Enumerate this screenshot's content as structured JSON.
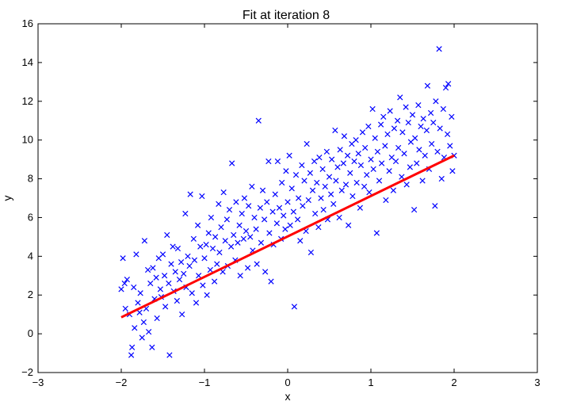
{
  "chart_data": {
    "type": "scatter",
    "title": "Fit at iteration 8",
    "xlabel": "x",
    "ylabel": "y",
    "xlim": [
      -3,
      3
    ],
    "ylim": [
      -2,
      16
    ],
    "xticks": [
      -3,
      -2,
      -1,
      0,
      1,
      2,
      3
    ],
    "yticks": [
      -2,
      0,
      2,
      4,
      6,
      8,
      10,
      12,
      14,
      16
    ],
    "grid": false,
    "colors": {
      "scatter": "#0000ff",
      "fit_line": "#ff0000"
    },
    "series": [
      {
        "type": "scatter",
        "marker": "x",
        "points": [
          [
            -2.0,
            2.3
          ],
          [
            -1.98,
            3.9
          ],
          [
            -1.96,
            2.6
          ],
          [
            -1.95,
            1.3
          ],
          [
            -1.93,
            2.8
          ],
          [
            -1.9,
            1.0
          ],
          [
            -1.88,
            -1.1
          ],
          [
            -1.87,
            -0.7
          ],
          [
            -1.85,
            2.4
          ],
          [
            -1.84,
            0.3
          ],
          [
            -1.82,
            4.1
          ],
          [
            -1.8,
            1.6
          ],
          [
            -1.78,
            1.1
          ],
          [
            -1.77,
            2.1
          ],
          [
            -1.75,
            -0.2
          ],
          [
            -1.73,
            0.6
          ],
          [
            -1.72,
            4.8
          ],
          [
            -1.7,
            1.3
          ],
          [
            -1.68,
            3.3
          ],
          [
            -1.67,
            0.1
          ],
          [
            -1.65,
            2.6
          ],
          [
            -1.63,
            -0.7
          ],
          [
            -1.62,
            3.4
          ],
          [
            -1.6,
            1.8
          ],
          [
            -1.58,
            2.9
          ],
          [
            -1.57,
            0.8
          ],
          [
            -1.55,
            3.9
          ],
          [
            -1.53,
            2.3
          ],
          [
            -1.52,
            1.9
          ],
          [
            -1.5,
            4.1
          ],
          [
            -1.48,
            3.0
          ],
          [
            -1.47,
            1.4
          ],
          [
            -1.45,
            5.1
          ],
          [
            -1.43,
            2.6
          ],
          [
            -1.42,
            -1.1
          ],
          [
            -1.4,
            3.6
          ],
          [
            -1.38,
            4.5
          ],
          [
            -1.37,
            2.2
          ],
          [
            -1.35,
            3.2
          ],
          [
            -1.33,
            1.7
          ],
          [
            -1.32,
            4.4
          ],
          [
            -1.3,
            2.8
          ],
          [
            -1.28,
            3.7
          ],
          [
            -1.27,
            1.0
          ],
          [
            -1.25,
            3.1
          ],
          [
            -1.23,
            6.2
          ],
          [
            -1.22,
            2.4
          ],
          [
            -1.2,
            4.0
          ],
          [
            -1.18,
            3.5
          ],
          [
            -1.17,
            7.2
          ],
          [
            -1.15,
            2.1
          ],
          [
            -1.13,
            4.9
          ],
          [
            -1.12,
            3.8
          ],
          [
            -1.1,
            1.6
          ],
          [
            -1.08,
            5.6
          ],
          [
            -1.07,
            3.0
          ],
          [
            -1.05,
            4.5
          ],
          [
            -1.03,
            7.1
          ],
          [
            -1.02,
            2.5
          ],
          [
            -1.0,
            3.9
          ],
          [
            -0.98,
            4.6
          ],
          [
            -0.97,
            2.0
          ],
          [
            -0.95,
            5.2
          ],
          [
            -0.93,
            3.3
          ],
          [
            -0.92,
            6.0
          ],
          [
            -0.9,
            4.4
          ],
          [
            -0.88,
            2.7
          ],
          [
            -0.87,
            5.0
          ],
          [
            -0.85,
            3.6
          ],
          [
            -0.83,
            6.7
          ],
          [
            -0.82,
            4.2
          ],
          [
            -0.8,
            5.5
          ],
          [
            -0.78,
            3.2
          ],
          [
            -0.77,
            7.3
          ],
          [
            -0.75,
            4.8
          ],
          [
            -0.73,
            5.9
          ],
          [
            -0.72,
            3.5
          ],
          [
            -0.7,
            6.4
          ],
          [
            -0.68,
            4.5
          ],
          [
            -0.67,
            8.8
          ],
          [
            -0.65,
            5.1
          ],
          [
            -0.63,
            3.8
          ],
          [
            -0.62,
            6.8
          ],
          [
            -0.6,
            4.7
          ],
          [
            -0.58,
            5.6
          ],
          [
            -0.57,
            3.0
          ],
          [
            -0.55,
            6.2
          ],
          [
            -0.53,
            4.9
          ],
          [
            -0.52,
            7.0
          ],
          [
            -0.5,
            5.3
          ],
          [
            -0.48,
            3.4
          ],
          [
            -0.47,
            6.6
          ],
          [
            -0.45,
            5.0
          ],
          [
            -0.43,
            7.6
          ],
          [
            -0.42,
            4.3
          ],
          [
            -0.4,
            6.0
          ],
          [
            -0.38,
            5.4
          ],
          [
            -0.37,
            3.6
          ],
          [
            -0.35,
            11.0
          ],
          [
            -0.33,
            6.5
          ],
          [
            -0.32,
            4.7
          ],
          [
            -0.3,
            7.4
          ],
          [
            -0.28,
            5.9
          ],
          [
            -0.27,
            3.2
          ],
          [
            -0.25,
            6.8
          ],
          [
            -0.23,
            8.9
          ],
          [
            -0.22,
            5.2
          ],
          [
            -0.2,
            2.7
          ],
          [
            -0.18,
            6.3
          ],
          [
            -0.17,
            4.6
          ],
          [
            -0.15,
            7.2
          ],
          [
            -0.13,
            5.7
          ],
          [
            -0.12,
            8.9
          ],
          [
            -0.1,
            6.5
          ],
          [
            -0.08,
            4.9
          ],
          [
            -0.07,
            7.8
          ],
          [
            -0.05,
            6.1
          ],
          [
            -0.03,
            5.4
          ],
          [
            -0.02,
            8.4
          ],
          [
            0.0,
            6.8
          ],
          [
            0.02,
            9.2
          ],
          [
            0.03,
            5.6
          ],
          [
            0.05,
            7.5
          ],
          [
            0.07,
            6.3
          ],
          [
            0.08,
            1.4
          ],
          [
            0.1,
            8.2
          ],
          [
            0.12,
            5.9
          ],
          [
            0.13,
            7.0
          ],
          [
            0.15,
            4.8
          ],
          [
            0.17,
            8.7
          ],
          [
            0.18,
            6.6
          ],
          [
            0.2,
            7.9
          ],
          [
            0.22,
            5.3
          ],
          [
            0.23,
            9.8
          ],
          [
            0.25,
            6.9
          ],
          [
            0.27,
            8.3
          ],
          [
            0.28,
            4.2
          ],
          [
            0.3,
            7.4
          ],
          [
            0.32,
            8.9
          ],
          [
            0.33,
            6.2
          ],
          [
            0.35,
            7.8
          ],
          [
            0.37,
            5.5
          ],
          [
            0.38,
            9.1
          ],
          [
            0.4,
            7.0
          ],
          [
            0.42,
            8.5
          ],
          [
            0.43,
            6.4
          ],
          [
            0.45,
            7.6
          ],
          [
            0.47,
            9.4
          ],
          [
            0.48,
            5.9
          ],
          [
            0.5,
            8.1
          ],
          [
            0.52,
            7.2
          ],
          [
            0.53,
            9.0
          ],
          [
            0.55,
            6.7
          ],
          [
            0.57,
            10.5
          ],
          [
            0.58,
            7.9
          ],
          [
            0.6,
            8.6
          ],
          [
            0.62,
            6.0
          ],
          [
            0.63,
            9.5
          ],
          [
            0.65,
            7.4
          ],
          [
            0.67,
            8.8
          ],
          [
            0.68,
            10.2
          ],
          [
            0.7,
            7.7
          ],
          [
            0.72,
            9.2
          ],
          [
            0.73,
            5.6
          ],
          [
            0.75,
            8.3
          ],
          [
            0.77,
            9.8
          ],
          [
            0.78,
            7.1
          ],
          [
            0.8,
            8.9
          ],
          [
            0.82,
            10.0
          ],
          [
            0.83,
            7.8
          ],
          [
            0.85,
            9.3
          ],
          [
            0.87,
            6.5
          ],
          [
            0.88,
            8.7
          ],
          [
            0.9,
            10.4
          ],
          [
            0.92,
            7.6
          ],
          [
            0.93,
            9.6
          ],
          [
            0.95,
            8.2
          ],
          [
            0.97,
            10.7
          ],
          [
            0.98,
            7.3
          ],
          [
            1.0,
            9.0
          ],
          [
            1.02,
            11.6
          ],
          [
            1.03,
            8.5
          ],
          [
            1.05,
            10.1
          ],
          [
            1.07,
            5.2
          ],
          [
            1.08,
            9.4
          ],
          [
            1.1,
            7.9
          ],
          [
            1.12,
            10.8
          ],
          [
            1.13,
            8.8
          ],
          [
            1.15,
            11.2
          ],
          [
            1.17,
            9.7
          ],
          [
            1.18,
            6.9
          ],
          [
            1.2,
            10.3
          ],
          [
            1.22,
            8.4
          ],
          [
            1.23,
            11.5
          ],
          [
            1.25,
            9.1
          ],
          [
            1.27,
            7.4
          ],
          [
            1.28,
            10.6
          ],
          [
            1.3,
            8.9
          ],
          [
            1.32,
            11.0
          ],
          [
            1.33,
            9.6
          ],
          [
            1.35,
            12.2
          ],
          [
            1.37,
            8.1
          ],
          [
            1.38,
            10.4
          ],
          [
            1.4,
            9.3
          ],
          [
            1.42,
            11.7
          ],
          [
            1.43,
            7.7
          ],
          [
            1.45,
            10.9
          ],
          [
            1.47,
            8.6
          ],
          [
            1.48,
            9.9
          ],
          [
            1.5,
            11.3
          ],
          [
            1.52,
            6.4
          ],
          [
            1.53,
            10.1
          ],
          [
            1.55,
            8.8
          ],
          [
            1.57,
            11.8
          ],
          [
            1.58,
            9.5
          ],
          [
            1.6,
            10.7
          ],
          [
            1.62,
            7.9
          ],
          [
            1.63,
            11.1
          ],
          [
            1.65,
            9.2
          ],
          [
            1.67,
            10.5
          ],
          [
            1.68,
            12.8
          ],
          [
            1.7,
            8.5
          ],
          [
            1.72,
            11.4
          ],
          [
            1.73,
            9.8
          ],
          [
            1.75,
            10.9
          ],
          [
            1.77,
            6.6
          ],
          [
            1.78,
            12.0
          ],
          [
            1.8,
            9.4
          ],
          [
            1.82,
            14.7
          ],
          [
            1.83,
            10.6
          ],
          [
            1.85,
            8.0
          ],
          [
            1.87,
            11.6
          ],
          [
            1.88,
            9.1
          ],
          [
            1.9,
            12.7
          ],
          [
            1.92,
            10.3
          ],
          [
            1.93,
            12.9
          ],
          [
            1.95,
            9.7
          ],
          [
            1.97,
            11.2
          ],
          [
            1.98,
            8.4
          ],
          [
            2.0,
            9.2
          ]
        ]
      },
      {
        "type": "line",
        "points": [
          [
            -2.0,
            0.85
          ],
          [
            2.0,
            9.2
          ]
        ]
      }
    ]
  }
}
